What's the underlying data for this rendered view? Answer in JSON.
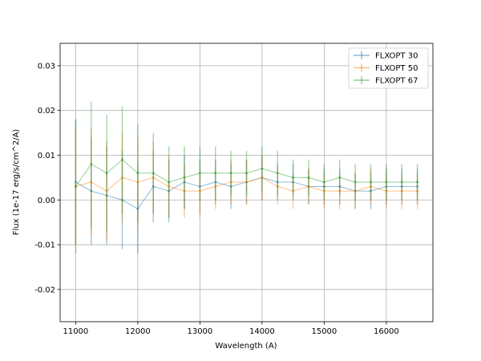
{
  "chart_data": {
    "type": "line",
    "xlabel": "Wavelength (A)",
    "ylabel": "Flux (1e-17 erg/s/cm^2/A)",
    "xlim": [
      10750,
      16750
    ],
    "ylim": [
      -0.0272,
      0.035
    ],
    "xticks": [
      11000,
      12000,
      13000,
      14000,
      15000,
      16000
    ],
    "yticks": [
      -0.02,
      -0.01,
      0.0,
      0.01,
      0.02,
      0.03
    ],
    "grid": true,
    "legend_position": "top-right",
    "colors": [
      "#1f77b4",
      "#ff7f0e",
      "#2ca02c"
    ],
    "series": [
      {
        "name": "FLXOPT 30",
        "color": "#1f77b4",
        "x": [
          11000,
          11250,
          11500,
          11750,
          12000,
          12250,
          12500,
          12750,
          13000,
          13250,
          13500,
          13750,
          14000,
          14250,
          14500,
          14750,
          15000,
          15250,
          15500,
          15750,
          16000,
          16250,
          16500
        ],
        "y": [
          0.004,
          0.002,
          0.001,
          0.0,
          -0.002,
          0.003,
          0.002,
          0.004,
          0.003,
          0.004,
          0.003,
          0.004,
          0.005,
          0.004,
          0.004,
          0.003,
          0.003,
          0.003,
          0.002,
          0.002,
          0.003,
          0.003,
          0.003
        ],
        "err": [
          0.014,
          0.012,
          0.011,
          0.011,
          0.01,
          0.008,
          0.007,
          0.006,
          0.006,
          0.005,
          0.005,
          0.005,
          0.005,
          0.004,
          0.004,
          0.004,
          0.004,
          0.004,
          0.004,
          0.004,
          0.004,
          0.004,
          0.004
        ]
      },
      {
        "name": "FLXOPT 50",
        "color": "#ff7f0e",
        "x": [
          11000,
          11250,
          11500,
          11750,
          12000,
          12250,
          12500,
          12750,
          13000,
          13250,
          13500,
          13750,
          14000,
          14250,
          14500,
          14750,
          15000,
          15250,
          15500,
          15750,
          16000,
          16250,
          16500
        ],
        "y": [
          0.003,
          0.004,
          0.002,
          0.005,
          0.004,
          0.005,
          0.003,
          0.002,
          0.002,
          0.003,
          0.004,
          0.004,
          0.005,
          0.003,
          0.002,
          0.003,
          0.002,
          0.002,
          0.002,
          0.003,
          0.002,
          0.002,
          0.002
        ],
        "err": [
          0.013,
          0.012,
          0.011,
          0.01,
          0.01,
          0.008,
          0.007,
          0.006,
          0.006,
          0.005,
          0.005,
          0.005,
          0.005,
          0.004,
          0.004,
          0.004,
          0.004,
          0.004,
          0.004,
          0.004,
          0.004,
          0.004,
          0.004
        ]
      },
      {
        "name": "FLXOPT 67",
        "color": "#2ca02c",
        "x": [
          11000,
          11250,
          11500,
          11750,
          12000,
          12250,
          12500,
          12750,
          13000,
          13250,
          13500,
          13750,
          14000,
          14250,
          14500,
          14750,
          15000,
          15250,
          15500,
          15750,
          16000,
          16250,
          16500
        ],
        "y": [
          0.003,
          0.008,
          0.006,
          0.009,
          0.006,
          0.006,
          0.004,
          0.005,
          0.006,
          0.006,
          0.006,
          0.006,
          0.007,
          0.006,
          0.005,
          0.005,
          0.004,
          0.005,
          0.004,
          0.004,
          0.004,
          0.004,
          0.004
        ],
        "err": [
          0.015,
          0.014,
          0.013,
          0.012,
          0.011,
          0.009,
          0.008,
          0.007,
          0.006,
          0.006,
          0.005,
          0.005,
          0.005,
          0.005,
          0.004,
          0.004,
          0.004,
          0.004,
          0.004,
          0.004,
          0.004,
          0.004,
          0.004
        ]
      }
    ]
  }
}
